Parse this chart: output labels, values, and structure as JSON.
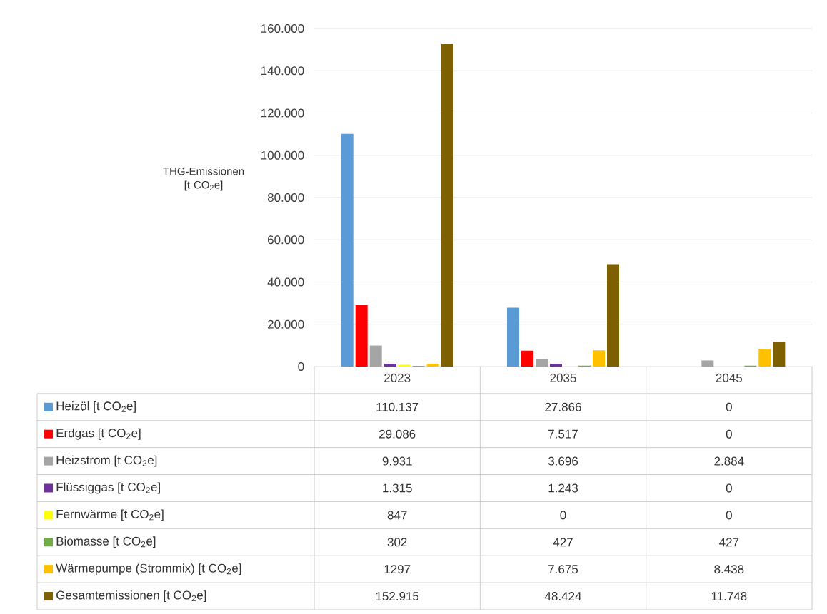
{
  "chart_data": {
    "type": "bar",
    "ylabel": "THG-Emissionen [t CO$_{2}$e]",
    "categories": [
      "2023",
      "2035",
      "2045"
    ],
    "series": [
      {
        "name": "Heizöl [t CO$_{2}$e]",
        "color": "#5b9bd5",
        "values": [
          110137,
          27866,
          0
        ],
        "value_labels": [
          "110.137",
          "27.866",
          "0"
        ]
      },
      {
        "name": "Erdgas [t CO$_{2}$e]",
        "color": "#ff0000",
        "values": [
          29086,
          7517,
          0
        ],
        "value_labels": [
          "29.086",
          "7.517",
          "0"
        ]
      },
      {
        "name": "Heizstrom [t CO$_{2}$e]",
        "color": "#a5a5a5",
        "values": [
          9931,
          3696,
          2884
        ],
        "value_labels": [
          "9.931",
          "3.696",
          "2.884"
        ]
      },
      {
        "name": "Flüssiggas [t CO$_{2}$e]",
        "color": "#7030a0",
        "values": [
          1315,
          1243,
          0
        ],
        "value_labels": [
          "1.315",
          "1.243",
          "0"
        ]
      },
      {
        "name": "Fernwärme [t CO$_{2}$e]",
        "color": "#ffff00",
        "values": [
          847,
          0,
          0
        ],
        "value_labels": [
          "847",
          "0",
          "0"
        ]
      },
      {
        "name": "Biomasse [t CO$_{2}$e]",
        "color": "#70ad47",
        "values": [
          302,
          427,
          427
        ],
        "value_labels": [
          "302",
          "427",
          "427"
        ]
      },
      {
        "name": "Wärmepumpe (Strommix) [t CO$_{2}$e]",
        "color": "#ffc000",
        "values": [
          1297,
          7675,
          8438
        ],
        "value_labels": [
          "1297",
          "7.675",
          "8.438"
        ]
      },
      {
        "name": "Gesamtemissionen [t CO$_{2}$e]",
        "color": "#7f6000",
        "values": [
          152915,
          48424,
          11748
        ],
        "value_labels": [
          "152.915",
          "48.424",
          "11.748"
        ]
      }
    ],
    "ylim": [
      0,
      160000
    ],
    "yticks": [
      0,
      {
        "value": 20000,
        "label": "20.000"
      },
      {
        "value": 40000,
        "label": "40.000"
      },
      {
        "value": 60000,
        "label": "60.000"
      },
      {
        "value": 80000,
        "label": "80.000"
      },
      {
        "value": 100000,
        "label": "100.000"
      },
      {
        "value": 120000,
        "label": "120.000"
      },
      {
        "value": 140000,
        "label": "140.000"
      },
      {
        "value": 160000,
        "label": "160.000"
      }
    ],
    "grid": "y",
    "legend": "bottom"
  }
}
